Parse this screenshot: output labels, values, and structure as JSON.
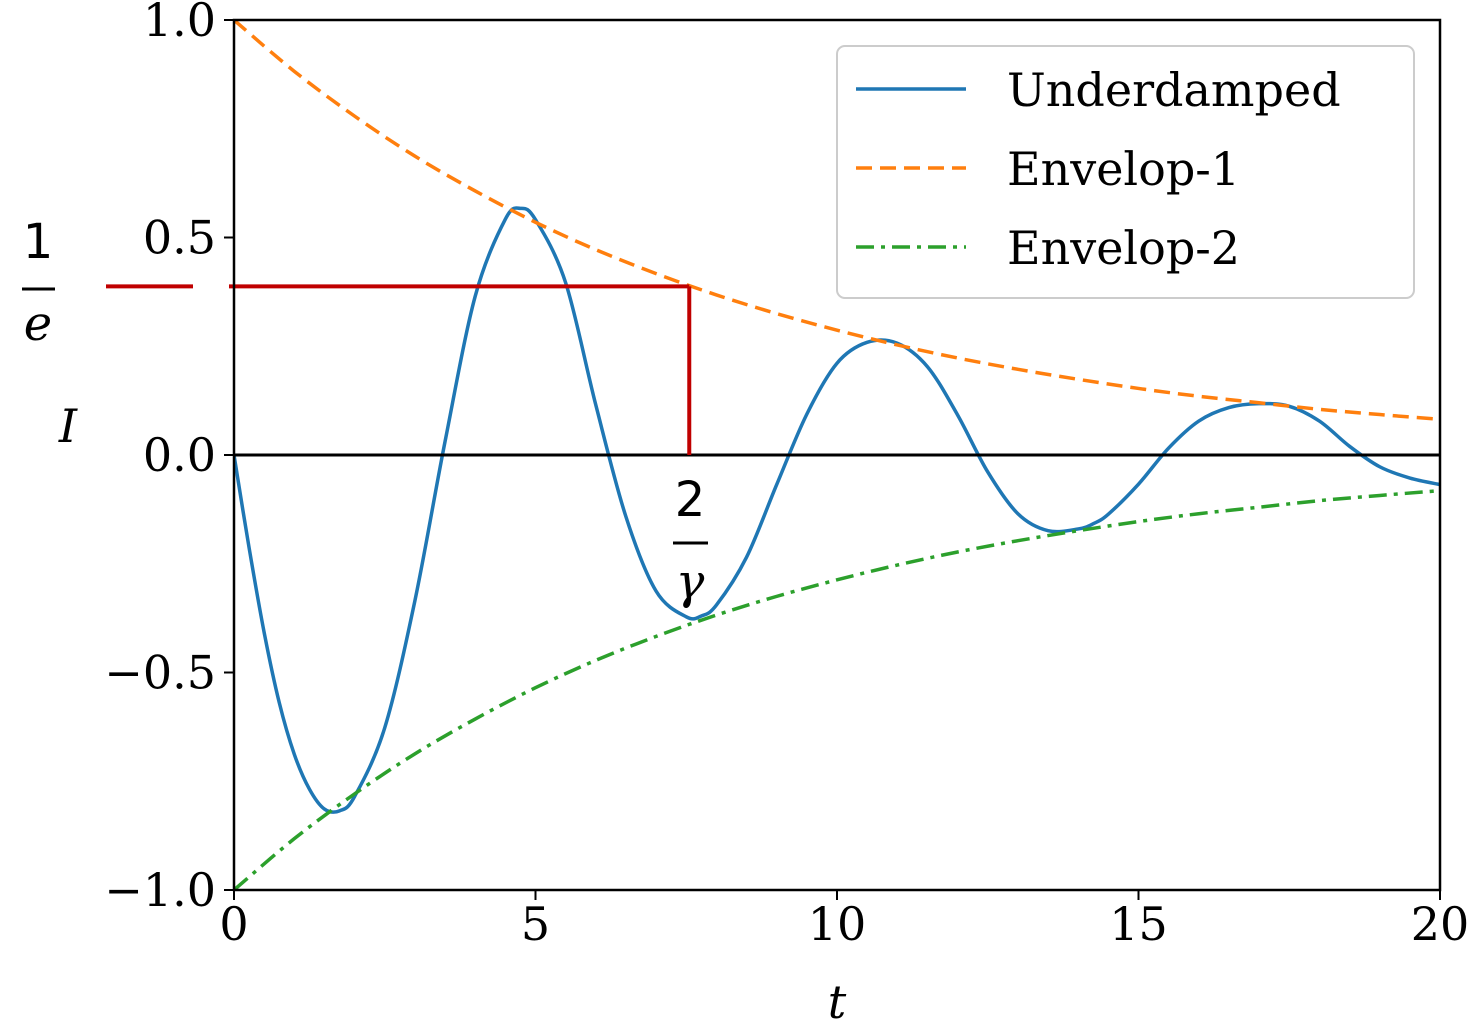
{
  "chart_data": {
    "type": "line",
    "xlabel": "t",
    "ylabel": "I",
    "xlim": [
      0,
      20
    ],
    "ylim": [
      -1.0,
      1.0
    ],
    "xticks": [
      0,
      5,
      10,
      15,
      20
    ],
    "xtick_labels": [
      "0",
      "5",
      "10",
      "15",
      "20"
    ],
    "yticks": [
      -1.0,
      -0.5,
      0.0,
      0.5,
      1.0
    ],
    "ytick_labels": [
      "−1.0",
      "−0.5",
      "0.0",
      "0.5",
      "1.0"
    ],
    "grid": false,
    "legend_position": "top-right",
    "series": [
      {
        "name": "Underdamped",
        "color": "#1f77b4",
        "style": "solid",
        "x": [
          0,
          0.25,
          0.5,
          0.75,
          1.0,
          1.25,
          1.5,
          1.75,
          2.0,
          2.5,
          3.0,
          3.5,
          4.0,
          4.5,
          4.75,
          5.0,
          5.5,
          6.0,
          6.5,
          7.0,
          7.5,
          7.75,
          8.0,
          8.5,
          9.0,
          9.5,
          10.0,
          10.5,
          11.0,
          11.5,
          12.0,
          12.5,
          13.0,
          13.5,
          14.0,
          14.25,
          14.5,
          15.0,
          15.5,
          16.0,
          16.5,
          17.0,
          17.5,
          18.0,
          18.5,
          19.0,
          19.5,
          20.0
        ],
        "y": [
          0.0,
          -0.213,
          -0.408,
          -0.569,
          -0.688,
          -0.768,
          -0.814,
          -0.818,
          -0.785,
          -0.627,
          -0.335,
          0.031,
          0.365,
          0.542,
          0.567,
          0.541,
          0.396,
          0.115,
          -0.142,
          -0.313,
          -0.372,
          -0.37,
          -0.345,
          -0.235,
          -0.068,
          0.094,
          0.211,
          0.259,
          0.257,
          0.203,
          0.092,
          -0.039,
          -0.135,
          -0.174,
          -0.17,
          -0.158,
          -0.136,
          -0.067,
          0.016,
          0.078,
          0.109,
          0.118,
          0.112,
          0.078,
          0.02,
          -0.027,
          -0.053,
          -0.068
        ]
      },
      {
        "name": "Envelop-1",
        "color": "#ff7f0e",
        "style": "dashed",
        "x": [
          0,
          1,
          2,
          3,
          4,
          5,
          6,
          7,
          8,
          9,
          10,
          11,
          12,
          13,
          14,
          15,
          16,
          17,
          18,
          19,
          20
        ],
        "y": [
          1.0,
          0.882,
          0.779,
          0.687,
          0.607,
          0.535,
          0.472,
          0.417,
          0.368,
          0.325,
          0.287,
          0.253,
          0.223,
          0.197,
          0.174,
          0.153,
          0.135,
          0.12,
          0.105,
          0.093,
          0.082
        ]
      },
      {
        "name": "Envelop-2",
        "color": "#2ca02c",
        "style": "dashdot",
        "x": [
          0,
          1,
          2,
          3,
          4,
          5,
          6,
          7,
          8,
          9,
          10,
          11,
          12,
          13,
          14,
          15,
          16,
          17,
          18,
          19,
          20
        ],
        "y": [
          -1.0,
          -0.882,
          -0.779,
          -0.687,
          -0.607,
          -0.535,
          -0.472,
          -0.417,
          -0.368,
          -0.325,
          -0.287,
          -0.253,
          -0.223,
          -0.197,
          -0.174,
          -0.153,
          -0.135,
          -0.12,
          -0.105,
          -0.093,
          -0.082
        ]
      }
    ],
    "annotations": {
      "color": "#c00000",
      "y_level": 0.3876,
      "x_level": 7.55,
      "y_label_num": "1",
      "y_label_den": "e",
      "x_label_num": "2",
      "x_label_den": "γ"
    }
  }
}
